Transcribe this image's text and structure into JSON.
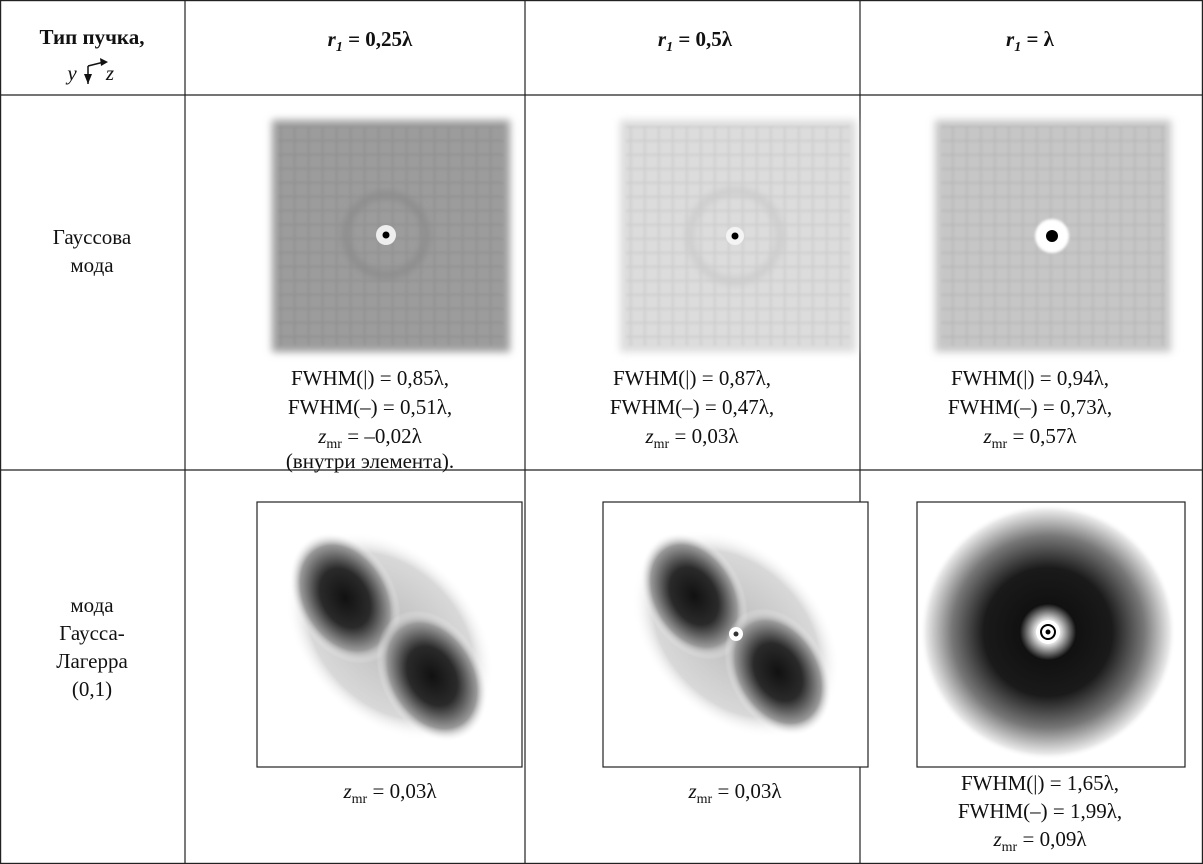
{
  "table": {
    "header": {
      "beam_type": "Тип пучка,",
      "axis_y": "y",
      "axis_z": "z",
      "columns": [
        {
          "symbol": "r",
          "subscript": "1",
          "rest": "= 0,25λ"
        },
        {
          "symbol": "r",
          "subscript": "1",
          "rest": "= 0,5λ"
        },
        {
          "symbol": "r",
          "subscript": "1",
          "rest": "= λ"
        }
      ]
    },
    "rows": [
      {
        "label": [
          "Гауссова",
          "мода"
        ],
        "cells": [
          {
            "lines": [
              "FWHM(|) = 0,85λ,",
              "FWHM(–) = 0,51λ,"
            ],
            "z": {
              "symbol": "z",
              "subscript": "mr",
              "rest": "= –0,02λ"
            },
            "note": "(внутри элемента)."
          },
          {
            "lines": [
              "FWHM(|) = 0,87λ,",
              "FWHM(–) = 0,47λ,"
            ],
            "z": {
              "symbol": "z",
              "subscript": "mr",
              "rest": "= 0,03λ"
            }
          },
          {
            "lines": [
              "FWHM(|) = 0,94λ,",
              "FWHM(–) = 0,73λ,"
            ],
            "z": {
              "symbol": "z",
              "subscript": "mr",
              "rest": "= 0,57λ"
            }
          }
        ]
      },
      {
        "label": [
          "мода",
          "Гаусса-",
          "Лагерра",
          "(0,1)"
        ],
        "cells": [
          {
            "z": {
              "symbol": "z",
              "subscript": "mr",
              "rest": "= 0,03λ"
            }
          },
          {
            "z": {
              "symbol": "z",
              "subscript": "mr",
              "rest": "= 0,03λ"
            }
          },
          {
            "lines": [
              "FWHM(|) = 1,65λ,",
              "FWHM(–) = 1,99λ,"
            ],
            "z": {
              "symbol": "z",
              "subscript": "mr",
              "rest": "= 0,09λ"
            }
          }
        ]
      }
    ]
  }
}
